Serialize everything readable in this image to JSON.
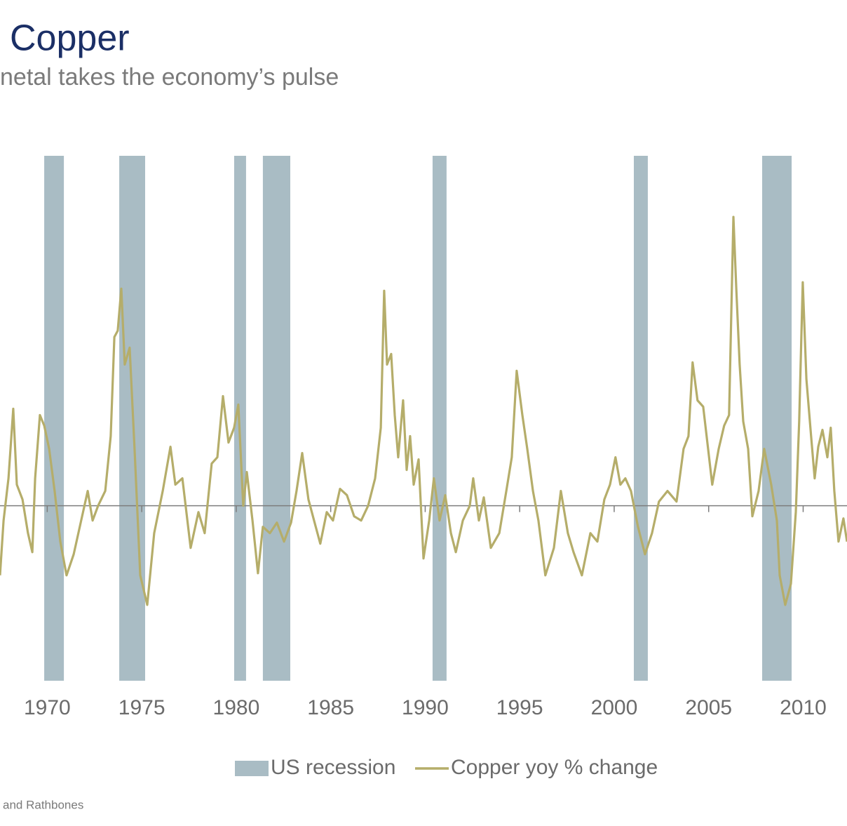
{
  "chart_data": {
    "type": "line",
    "title": "Copper",
    "subtitle": "netal takes the economy’s pulse",
    "source": "and Rathbones",
    "xlim": [
      1967.5,
      2012.32
    ],
    "ylim": [
      -83,
      166
    ],
    "xticks": [
      1970,
      1975,
      1980,
      1985,
      1990,
      1995,
      2000,
      2005,
      2010
    ],
    "legend": "bottom",
    "recessions": {
      "name": "US recession",
      "color": "#a9bcc4",
      "starts": [
        1969.84,
        1973.81,
        1979.89,
        1981.41,
        1990.39,
        2001.04,
        2007.83
      ],
      "ends": [
        1970.88,
        1975.18,
        1980.52,
        1982.86,
        1991.13,
        2001.78,
        2009.39
      ]
    },
    "x": [
      1967.5,
      1967.69,
      1967.95,
      1968.2,
      1968.39,
      1968.69,
      1968.98,
      1969.21,
      1969.36,
      1969.61,
      1969.84,
      1970.1,
      1970.39,
      1970.69,
      1971.02,
      1971.4,
      1971.77,
      1972.14,
      1972.4,
      1972.69,
      1973.07,
      1973.36,
      1973.55,
      1973.73,
      1973.92,
      1974.1,
      1974.36,
      1974.62,
      1974.92,
      1975.29,
      1975.66,
      1976.11,
      1976.52,
      1976.78,
      1977.15,
      1977.59,
      1978,
      1978.33,
      1978.7,
      1979,
      1979.3,
      1979.59,
      1979.89,
      1980.11,
      1980.37,
      1980.56,
      1980.86,
      1981.15,
      1981.41,
      1981.78,
      1982.15,
      1982.53,
      1982.9,
      1983.19,
      1983.49,
      1983.82,
      1984.12,
      1984.45,
      1984.79,
      1985.12,
      1985.49,
      1985.86,
      1986.24,
      1986.61,
      1986.98,
      1987.35,
      1987.65,
      1987.83,
      1987.98,
      1988.2,
      1988.39,
      1988.57,
      1988.83,
      1989.02,
      1989.2,
      1989.39,
      1989.65,
      1989.91,
      1990.21,
      1990.46,
      1990.76,
      1991.06,
      1991.36,
      1991.62,
      1991.99,
      1992.36,
      1992.54,
      1992.84,
      1993.1,
      1993.47,
      1993.92,
      1994.29,
      1994.58,
      1994.84,
      1995.14,
      1995.4,
      1995.7,
      1995.99,
      1996.36,
      1996.81,
      1997.18,
      1997.55,
      1997.85,
      1998.29,
      1998.74,
      1999.11,
      1999.48,
      1999.78,
      2000.07,
      2000.33,
      2000.59,
      2000.89,
      2001.26,
      2001.63,
      2002,
      2002.37,
      2002.82,
      2003.3,
      2003.67,
      2003.93,
      2004.15,
      2004.41,
      2004.71,
      2004.97,
      2005.19,
      2005.53,
      2005.82,
      2006.08,
      2006.31,
      2006.46,
      2006.64,
      2006.83,
      2007.09,
      2007.31,
      2007.64,
      2007.94,
      2008.31,
      2008.61,
      2008.76,
      2009.05,
      2009.35,
      2009.61,
      2009.79,
      2009.98,
      2010.17,
      2010.42,
      2010.61,
      2010.8,
      2011.02,
      2011.28,
      2011.46,
      2011.65,
      2011.87,
      2012.13,
      2012.32
    ],
    "series": [
      {
        "name": "Copper yoy % change",
        "color": "#b5ad6a",
        "values": [
          -33,
          -7,
          13,
          46,
          10,
          3,
          -13,
          -22,
          13,
          43,
          38,
          27,
          7,
          -17,
          -33,
          -23,
          -8,
          7,
          -7,
          0,
          7,
          33,
          80,
          83,
          103,
          67,
          75,
          27,
          -33,
          -47,
          -13,
          7,
          28,
          10,
          13,
          -20,
          -3,
          -13,
          20,
          23,
          52,
          30,
          37,
          48,
          0,
          16,
          -7,
          -32,
          -10,
          -13,
          -8,
          -17,
          -8,
          7,
          25,
          3,
          -7,
          -18,
          -3,
          -7,
          8,
          5,
          -5,
          -7,
          0,
          13,
          37,
          102,
          67,
          72,
          43,
          23,
          50,
          17,
          33,
          10,
          22,
          -25,
          -7,
          13,
          -7,
          5,
          -13,
          -22,
          -7,
          0,
          13,
          -7,
          4,
          -20,
          -13,
          7,
          23,
          64,
          43,
          27,
          7,
          -7,
          -33,
          -20,
          7,
          -13,
          -22,
          -33,
          -13,
          -17,
          3,
          10,
          23,
          10,
          13,
          7,
          -10,
          -23,
          -13,
          2,
          7,
          2,
          27,
          33,
          68,
          50,
          47,
          27,
          10,
          27,
          38,
          43,
          137,
          103,
          67,
          40,
          27,
          -5,
          7,
          27,
          10,
          -7,
          -33,
          -47,
          -37,
          -3,
          40,
          106,
          60,
          33,
          13,
          28,
          36,
          23,
          37,
          7,
          -17,
          -6,
          -17
        ]
      }
    ]
  }
}
